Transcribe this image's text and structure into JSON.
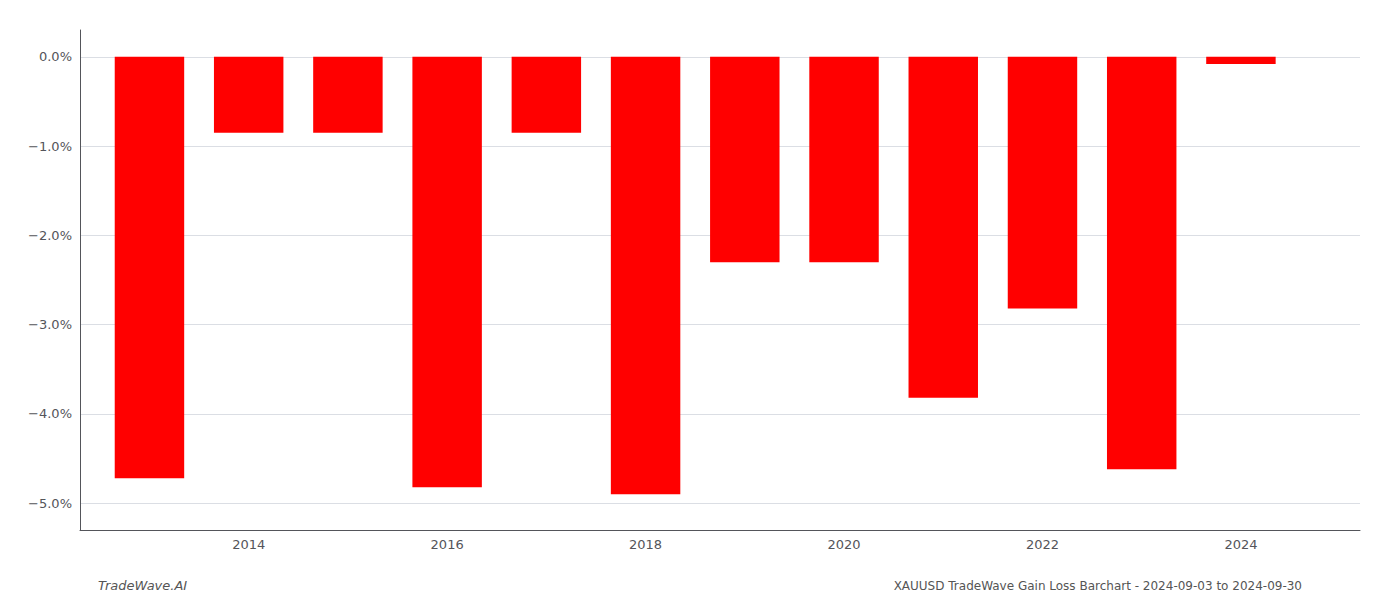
{
  "chart_data": {
    "type": "bar",
    "x": [
      2013,
      2014,
      2015,
      2016,
      2017,
      2018,
      2019,
      2020,
      2021,
      2022,
      2023,
      2024
    ],
    "values": [
      -4.72,
      -0.85,
      -0.85,
      -4.82,
      -0.85,
      -4.9,
      -2.3,
      -2.3,
      -3.82,
      -2.82,
      -4.62,
      -0.08
    ],
    "color": "#ff0000",
    "xlim": [
      2012.3,
      2025.2
    ],
    "xticks": [
      2014,
      2016,
      2018,
      2020,
      2022,
      2024
    ],
    "ylim": [
      -5.3,
      0.3
    ],
    "yticks": [
      {
        "value": 0.0,
        "label": "0.0%"
      },
      {
        "value": -1.0,
        "label": "−1.0%"
      },
      {
        "value": -2.0,
        "label": "−2.0%"
      },
      {
        "value": -3.0,
        "label": "−3.0%"
      },
      {
        "value": -4.0,
        "label": "−4.0%"
      },
      {
        "value": -5.0,
        "label": "−5.0%"
      }
    ],
    "grid": true,
    "annotations": [
      "TradeWave.AI",
      "XAUUSD TradeWave Gain Loss Barchart - 2024-09-03 to 2024-09-30"
    ]
  }
}
